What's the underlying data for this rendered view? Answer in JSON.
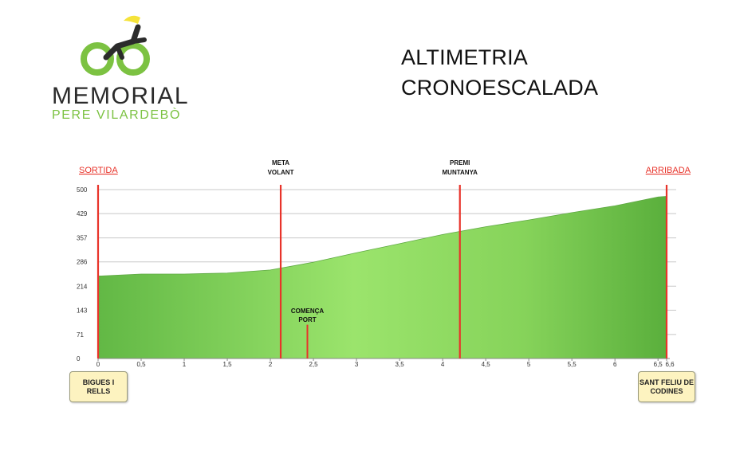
{
  "logo": {
    "line1": "MEMORIAL",
    "line2": "PERE VILARDEBÒ",
    "colors": {
      "green": "#7cc242",
      "yellow": "#f5e33a",
      "dark": "#2b2b2b"
    }
  },
  "title": {
    "line1": "ALTIMETRIA",
    "line2": "CRONOESCALADA"
  },
  "chart_data": {
    "type": "area",
    "x": [
      0,
      0.5,
      1,
      1.5,
      2,
      2.5,
      3,
      3.5,
      4,
      4.5,
      5,
      5.5,
      6,
      6.5,
      6.6
    ],
    "values": [
      244,
      250,
      250,
      253,
      262,
      285,
      313,
      340,
      367,
      390,
      410,
      432,
      452,
      478,
      480
    ],
    "xticks": [
      "0",
      "0,5",
      "1",
      "1,5",
      "2",
      "2,5",
      "3",
      "3,5",
      "4",
      "4,5",
      "5",
      "5,5",
      "6",
      "6,5",
      "6,6"
    ],
    "yticks": [
      "0",
      "71",
      "143",
      "214",
      "286",
      "357",
      "429",
      "500"
    ],
    "ylim": [
      0,
      500
    ],
    "xlim": [
      0,
      6.6
    ],
    "grid": true,
    "fill_colors": {
      "light": "#9be46c",
      "dark": "#5aaf3c"
    },
    "marker_color": "#e8332a",
    "markers": [
      {
        "x": 0,
        "top_label": "SORTIDA",
        "underlined": true,
        "color": "#e8332a"
      },
      {
        "x": 2.12,
        "top_label": "META VOLANT",
        "underlined": false,
        "color": "#111111"
      },
      {
        "x": 4.2,
        "top_label": "PREMI MUNTANYA",
        "underlined": false,
        "color": "#111111"
      },
      {
        "x": 6.6,
        "top_label": "ARRIBADA",
        "underlined": true,
        "color": "#e8332a"
      }
    ],
    "short_marker": {
      "x": 2.43,
      "value": 100,
      "label": "COMENÇA PORT"
    },
    "places": [
      {
        "label": "BIGUES I RELLS"
      },
      {
        "label": "SANT FELIU DE CODINES"
      }
    ]
  }
}
